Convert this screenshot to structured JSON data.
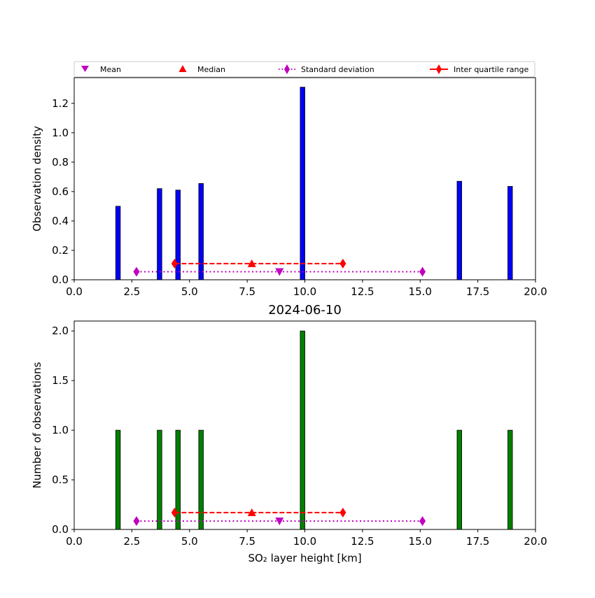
{
  "chart_data": [
    {
      "type": "bar",
      "title": "",
      "xlabel": "",
      "ylabel": "Observation density",
      "xlim": [
        0,
        20
      ],
      "ylim": [
        0,
        1.375
      ],
      "xticks": [
        0.0,
        2.5,
        5.0,
        7.5,
        10.0,
        12.5,
        15.0,
        17.5,
        20.0
      ],
      "xtick_labels": [
        "0.0",
        "2.5",
        "5.0",
        "7.5",
        "10.0",
        "12.5",
        "15.0",
        "17.5",
        "20.0"
      ],
      "yticks": [
        0.0,
        0.2,
        0.4,
        0.6,
        0.8,
        1.0,
        1.2
      ],
      "ytick_labels": [
        "0.0",
        "0.2",
        "0.4",
        "0.6",
        "0.8",
        "1.0",
        "1.2"
      ],
      "bar_color": "#0000ff",
      "bar_width": 0.2,
      "bars": [
        {
          "x": 1.9,
          "value": 0.5
        },
        {
          "x": 3.7,
          "value": 0.62
        },
        {
          "x": 4.5,
          "value": 0.61
        },
        {
          "x": 5.5,
          "value": 0.655
        },
        {
          "x": 9.9,
          "value": 1.31
        },
        {
          "x": 16.7,
          "value": 0.67
        },
        {
          "x": 18.9,
          "value": 0.635
        }
      ],
      "stats": {
        "mean": {
          "x": 8.9,
          "y": 0.055
        },
        "median": {
          "x": 7.7,
          "y": 0.11
        },
        "std_dev": {
          "x": [
            2.7,
            15.1
          ],
          "y": 0.055
        },
        "iqr": {
          "x": [
            4.35,
            11.65
          ],
          "y": 0.11
        }
      },
      "legend": {
        "placement": "top, above axes",
        "entries": [
          "Mean",
          "Median",
          "Standard deviation",
          "Inter quartile range"
        ]
      }
    },
    {
      "type": "bar",
      "title": "2024-06-10",
      "xlabel": "SO₂ layer height [km]",
      "ylabel": "Number of observations",
      "xlim": [
        0,
        20
      ],
      "ylim": [
        0,
        2.1
      ],
      "xticks": [
        0.0,
        2.5,
        5.0,
        7.5,
        10.0,
        12.5,
        15.0,
        17.5,
        20.0
      ],
      "xtick_labels": [
        "0.0",
        "2.5",
        "5.0",
        "7.5",
        "10.0",
        "12.5",
        "15.0",
        "17.5",
        "20.0"
      ],
      "yticks": [
        0.0,
        0.5,
        1.0,
        1.5,
        2.0
      ],
      "ytick_labels": [
        "0.0",
        "0.5",
        "1.0",
        "1.5",
        "2.0"
      ],
      "bar_color": "#008000",
      "bar_width": 0.2,
      "bars": [
        {
          "x": 1.9,
          "value": 1
        },
        {
          "x": 3.7,
          "value": 1
        },
        {
          "x": 4.5,
          "value": 1
        },
        {
          "x": 5.5,
          "value": 1
        },
        {
          "x": 9.9,
          "value": 2
        },
        {
          "x": 16.7,
          "value": 1
        },
        {
          "x": 18.9,
          "value": 1
        }
      ],
      "stats": {
        "mean": {
          "x": 8.9,
          "y": 0.085
        },
        "median": {
          "x": 7.7,
          "y": 0.17
        },
        "std_dev": {
          "x": [
            2.7,
            15.1
          ],
          "y": 0.085
        },
        "iqr": {
          "x": [
            4.35,
            11.65
          ],
          "y": 0.17
        }
      }
    }
  ],
  "colors": {
    "mean": "#bf00bf",
    "median": "#ff0000",
    "std_dev": "#bf00bf",
    "iqr": "#ff0000"
  }
}
